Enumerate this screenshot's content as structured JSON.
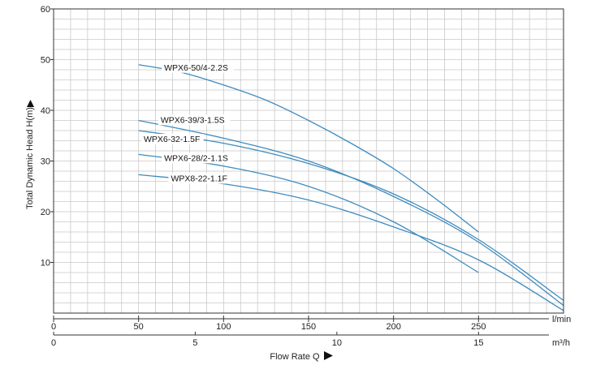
{
  "chart_data": {
    "type": "line",
    "title": "",
    "ylabel": "Total Dynamic Head H(m)",
    "xlabel": "Flow Rate Q",
    "ylim": [
      0,
      60
    ],
    "xlim": [
      0,
      300
    ],
    "y_ticks": [
      "10",
      "20",
      "30",
      "40",
      "50",
      "60"
    ],
    "x_ticks_lmin": [
      "0",
      "50",
      "100",
      "150",
      "200",
      "250"
    ],
    "x_unit_lmin": "l/min",
    "x_ticks_m3h": [
      "0",
      "5",
      "10",
      "15"
    ],
    "x_unit_m3h": "m³/h",
    "grid": true,
    "colors": {
      "curve": "#3f8bbf",
      "grid": "#c8c8c8",
      "axis": "#333333"
    },
    "series": [
      {
        "name": "WPX6-50/4-2.2S",
        "x": [
          50,
          75,
          100,
          125,
          150,
          175,
          200,
          225,
          250
        ],
        "y": [
          49,
          47.5,
          45,
          42,
          38,
          33.5,
          28.5,
          22.5,
          16
        ]
      },
      {
        "name": "WPX6-39/3-1.5S",
        "x": [
          50,
          100,
          150,
          200,
          250,
          300
        ],
        "y": [
          38,
          34.5,
          30,
          23,
          14,
          1.5
        ]
      },
      {
        "name": "WPX6-32-1.5F",
        "x": [
          50,
          100,
          150,
          200,
          250,
          300
        ],
        "y": [
          36,
          33.5,
          29.5,
          23.5,
          14.5,
          2.5
        ]
      },
      {
        "name": "WPX6-28/2-1.1S",
        "x": [
          50,
          100,
          150,
          200,
          250
        ],
        "y": [
          31.3,
          29,
          25,
          18,
          8
        ]
      },
      {
        "name": "WPX8-22-1.1F",
        "x": [
          50,
          100,
          150,
          200,
          250,
          300
        ],
        "y": [
          27.3,
          25.5,
          22.3,
          17,
          10.5,
          0.5
        ]
      }
    ]
  }
}
